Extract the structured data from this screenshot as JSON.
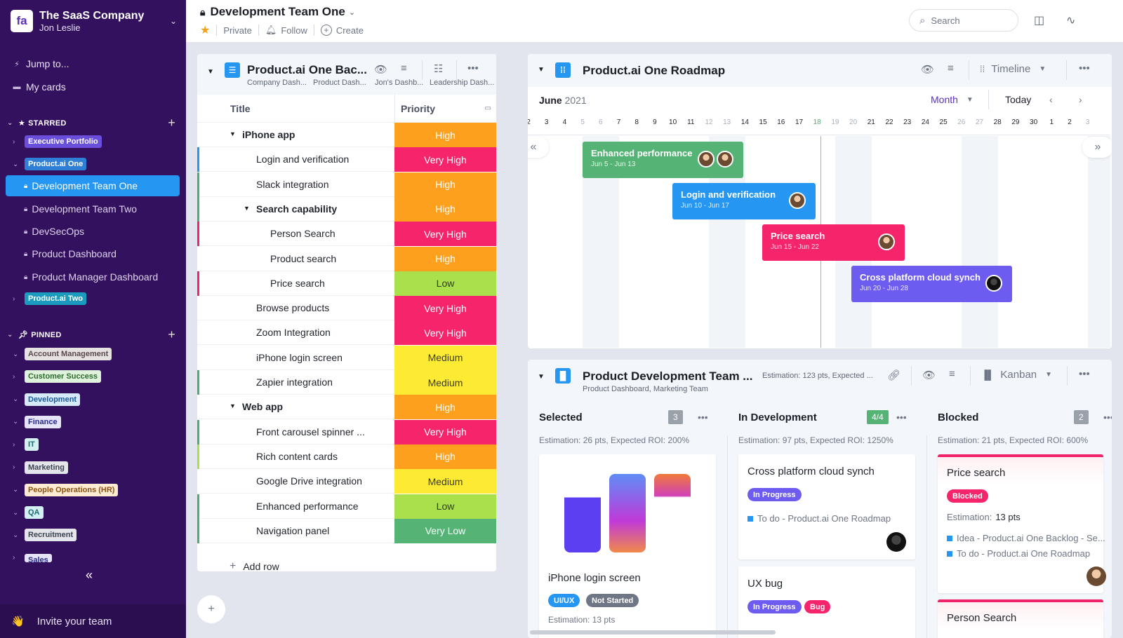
{
  "sidebar": {
    "org_name": "The SaaS Company",
    "user_name": "Jon Leslie",
    "logo_text": "fa",
    "jump_to": "Jump to...",
    "my_cards": "My cards",
    "starred_label": "STARRED",
    "pinned_label": "PINNED",
    "starred": [
      {
        "label": "Executive Portfolio",
        "bg": "#6a4fdc",
        "fg": "#ffffff",
        "expanded": false
      },
      {
        "label": "Product.ai One",
        "bg": "#2f7fd6",
        "fg": "#ffffff",
        "expanded": true
      },
      {
        "label": "Product.ai Two",
        "bg": "#1b9bbd",
        "fg": "#ffffff",
        "expanded": false
      }
    ],
    "pages": [
      {
        "label": "Development Team One",
        "active": true
      },
      {
        "label": "Development Team Two",
        "active": false
      },
      {
        "label": "DevSecOps",
        "active": false
      },
      {
        "label": "Product Dashboard",
        "active": false
      },
      {
        "label": "Product Manager Dashboard",
        "active": false
      }
    ],
    "pinned": [
      {
        "label": "Account Management",
        "bg": "#e6e2e2",
        "fg": "#5a4a4a",
        "expanded": true
      },
      {
        "label": "Customer Success",
        "bg": "#dff2dc",
        "fg": "#2c6b2a",
        "expanded": false
      },
      {
        "label": "Development",
        "bg": "#d7eafc",
        "fg": "#1a5a9c",
        "expanded": true
      },
      {
        "label": "Finance",
        "bg": "#e5e4fb",
        "fg": "#2a2a8e",
        "expanded": true
      },
      {
        "label": "IT",
        "bg": "#d3f1f2",
        "fg": "#1f6f73",
        "expanded": false
      },
      {
        "label": "Marketing",
        "bg": "#e3e5ea",
        "fg": "#3d4452",
        "expanded": false
      },
      {
        "label": "People Operations (HR)",
        "bg": "#fdebd3",
        "fg": "#8a5412",
        "expanded": true
      },
      {
        "label": "QA",
        "bg": "#d3f1f2",
        "fg": "#1f6f73",
        "expanded": true
      },
      {
        "label": "Recruitment",
        "bg": "#e3e5ea",
        "fg": "#3d4452",
        "expanded": true
      },
      {
        "label": "Sales",
        "bg": "#e5e4fb",
        "fg": "#2a2a8e",
        "expanded": false
      }
    ],
    "collapse_icon": "«",
    "invite_label": "Invite your team",
    "invite_icon": "👋"
  },
  "topbar": {
    "page_title": "Development Team One",
    "privacy": "Private",
    "follow": "Follow",
    "create": "Create",
    "search_placeholder": "Search"
  },
  "backlog": {
    "title": "Product.ai One Bac...",
    "dashboards": [
      "Company Dash...",
      "Product Dash...",
      "Jon's Dashb...",
      "Leadership Dash..."
    ],
    "col_title": "Title",
    "col_priority": "Priority",
    "add_row": "Add row",
    "rows": [
      {
        "title": "iPhone app",
        "priority": "High",
        "level": 0,
        "group": true,
        "bar": ""
      },
      {
        "title": "Login and verification",
        "priority": "Very High",
        "level": 1,
        "group": false,
        "bar": "#2596f2"
      },
      {
        "title": "Slack integration",
        "priority": "High",
        "level": 1,
        "group": false,
        "bar": "#4caf70"
      },
      {
        "title": "Search capability",
        "priority": "High",
        "level": 1,
        "group": true,
        "bar": "#4caf70"
      },
      {
        "title": "Person Search",
        "priority": "Very High",
        "level": 2,
        "group": false,
        "bar": "#f0246b"
      },
      {
        "title": "Product search",
        "priority": "High",
        "level": 2,
        "group": false,
        "bar": ""
      },
      {
        "title": "Price search",
        "priority": "Low",
        "level": 2,
        "group": false,
        "bar": "#f0246b"
      },
      {
        "title": "Browse products",
        "priority": "Very High",
        "level": 1,
        "group": false,
        "bar": ""
      },
      {
        "title": "Zoom Integration",
        "priority": "Very High",
        "level": 1,
        "group": false,
        "bar": ""
      },
      {
        "title": "iPhone login screen",
        "priority": "Medium",
        "level": 1,
        "group": false,
        "bar": ""
      },
      {
        "title": "Zapier integration",
        "priority": "Medium",
        "level": 1,
        "group": false,
        "bar": "#4caf70"
      },
      {
        "title": "Web app",
        "priority": "High",
        "level": 0,
        "group": true,
        "bar": ""
      },
      {
        "title": "Front carousel spinner ...",
        "priority": "Very High",
        "level": 1,
        "group": false,
        "bar": "#4caf70"
      },
      {
        "title": "Rich content cards",
        "priority": "High",
        "level": 1,
        "group": false,
        "bar": "#a8e04a"
      },
      {
        "title": "Google Drive integration",
        "priority": "Medium",
        "level": 1,
        "group": false,
        "bar": ""
      },
      {
        "title": "Enhanced performance",
        "priority": "Low",
        "level": 1,
        "group": false,
        "bar": "#4caf70"
      },
      {
        "title": "Navigation panel",
        "priority": "Very Low",
        "level": 1,
        "group": false,
        "bar": "#4caf70"
      }
    ],
    "priority_colors": {
      "Very High": {
        "bg": "#f5246b",
        "fg": "#ffffff"
      },
      "High": {
        "bg": "#fca01e",
        "fg": "#ffffff"
      },
      "Medium": {
        "bg": "#fdeb33",
        "fg": "#3a3a2a"
      },
      "Low": {
        "bg": "#abe04d",
        "fg": "#2f3a22"
      },
      "Very Low": {
        "bg": "#55b475",
        "fg": "#ffffff"
      }
    }
  },
  "roadmap": {
    "title": "Product.ai One Roadmap",
    "view": "Timeline",
    "month": "June",
    "year": "2021",
    "scale": "Month",
    "today": "Today",
    "days": [
      {
        "d": "2",
        "we": false
      },
      {
        "d": "3",
        "we": false
      },
      {
        "d": "4",
        "we": false
      },
      {
        "d": "5",
        "we": true
      },
      {
        "d": "6",
        "we": true
      },
      {
        "d": "7",
        "we": false
      },
      {
        "d": "8",
        "we": false
      },
      {
        "d": "9",
        "we": false
      },
      {
        "d": "10",
        "we": false
      },
      {
        "d": "11",
        "we": false
      },
      {
        "d": "12",
        "we": true
      },
      {
        "d": "13",
        "we": true
      },
      {
        "d": "14",
        "we": false
      },
      {
        "d": "15",
        "we": false
      },
      {
        "d": "16",
        "we": false
      },
      {
        "d": "17",
        "we": false
      },
      {
        "d": "18",
        "we": false,
        "today": true
      },
      {
        "d": "19",
        "we": true
      },
      {
        "d": "20",
        "we": true
      },
      {
        "d": "21",
        "we": false
      },
      {
        "d": "22",
        "we": false
      },
      {
        "d": "23",
        "we": false
      },
      {
        "d": "24",
        "we": false
      },
      {
        "d": "25",
        "we": false
      },
      {
        "d": "26",
        "we": true
      },
      {
        "d": "27",
        "we": true
      },
      {
        "d": "28",
        "we": false
      },
      {
        "d": "29",
        "we": false
      },
      {
        "d": "30",
        "we": false
      },
      {
        "d": "1",
        "we": false
      },
      {
        "d": "2",
        "we": false
      },
      {
        "d": "3",
        "we": true
      }
    ],
    "bars": [
      {
        "title": "Enhanced performance",
        "dates": "Jun 5 - Jun 13",
        "color": "#55b475",
        "avatars": 2
      },
      {
        "title": "Login and verification",
        "dates": "Jun 10 - Jun 17",
        "color": "#2596f2",
        "avatars": 1
      },
      {
        "title": "Price search",
        "dates": "Jun 15 - Jun 22",
        "color": "#f5246b",
        "avatars": 1
      },
      {
        "title": "Cross platform cloud synch",
        "dates": "Jun 20 - Jun 28",
        "color": "#6d5cf0",
        "avatars": 1
      }
    ]
  },
  "kanban": {
    "title": "Product Development Team ...",
    "subtitle": "Product Dashboard,  Marketing Team",
    "estimation_summary": "Estimation: 123 pts, Expected ...",
    "view": "Kanban",
    "columns": [
      {
        "name": "Selected",
        "count": "3",
        "count_color": "#9aa1ab",
        "estimation": "Estimation: 26 pts, Expected ROI: 200%"
      },
      {
        "name": "In Development",
        "count": "4/4",
        "count_color": "#55b475",
        "estimation": "Estimation: 97 pts, Expected ROI: 1250%"
      },
      {
        "name": "Blocked",
        "count": "2",
        "count_color": "#9aa1ab",
        "estimation": "Estimation: 21 pts, Expected ROI: 600%"
      }
    ],
    "cards": {
      "iphone": {
        "title": "iPhone login screen",
        "tags": [
          "UI/UX",
          "Not Started"
        ],
        "estimation": "Estimation: 13 pts"
      },
      "cloud": {
        "title": "Cross platform cloud synch",
        "status": "In Progress",
        "link": "To do - Product.ai One Roadmap"
      },
      "uxbug": {
        "title": "UX bug",
        "status": "In Progress",
        "tag": "Bug"
      },
      "price": {
        "title": "Price search",
        "status": "Blocked",
        "estimation_label": "Estimation:",
        "estimation_value": "13 pts",
        "links": [
          "Idea - Product.ai One Backlog - Se...",
          "To do - Product.ai One Roadmap"
        ]
      },
      "person": {
        "title": "Person Search"
      }
    }
  }
}
